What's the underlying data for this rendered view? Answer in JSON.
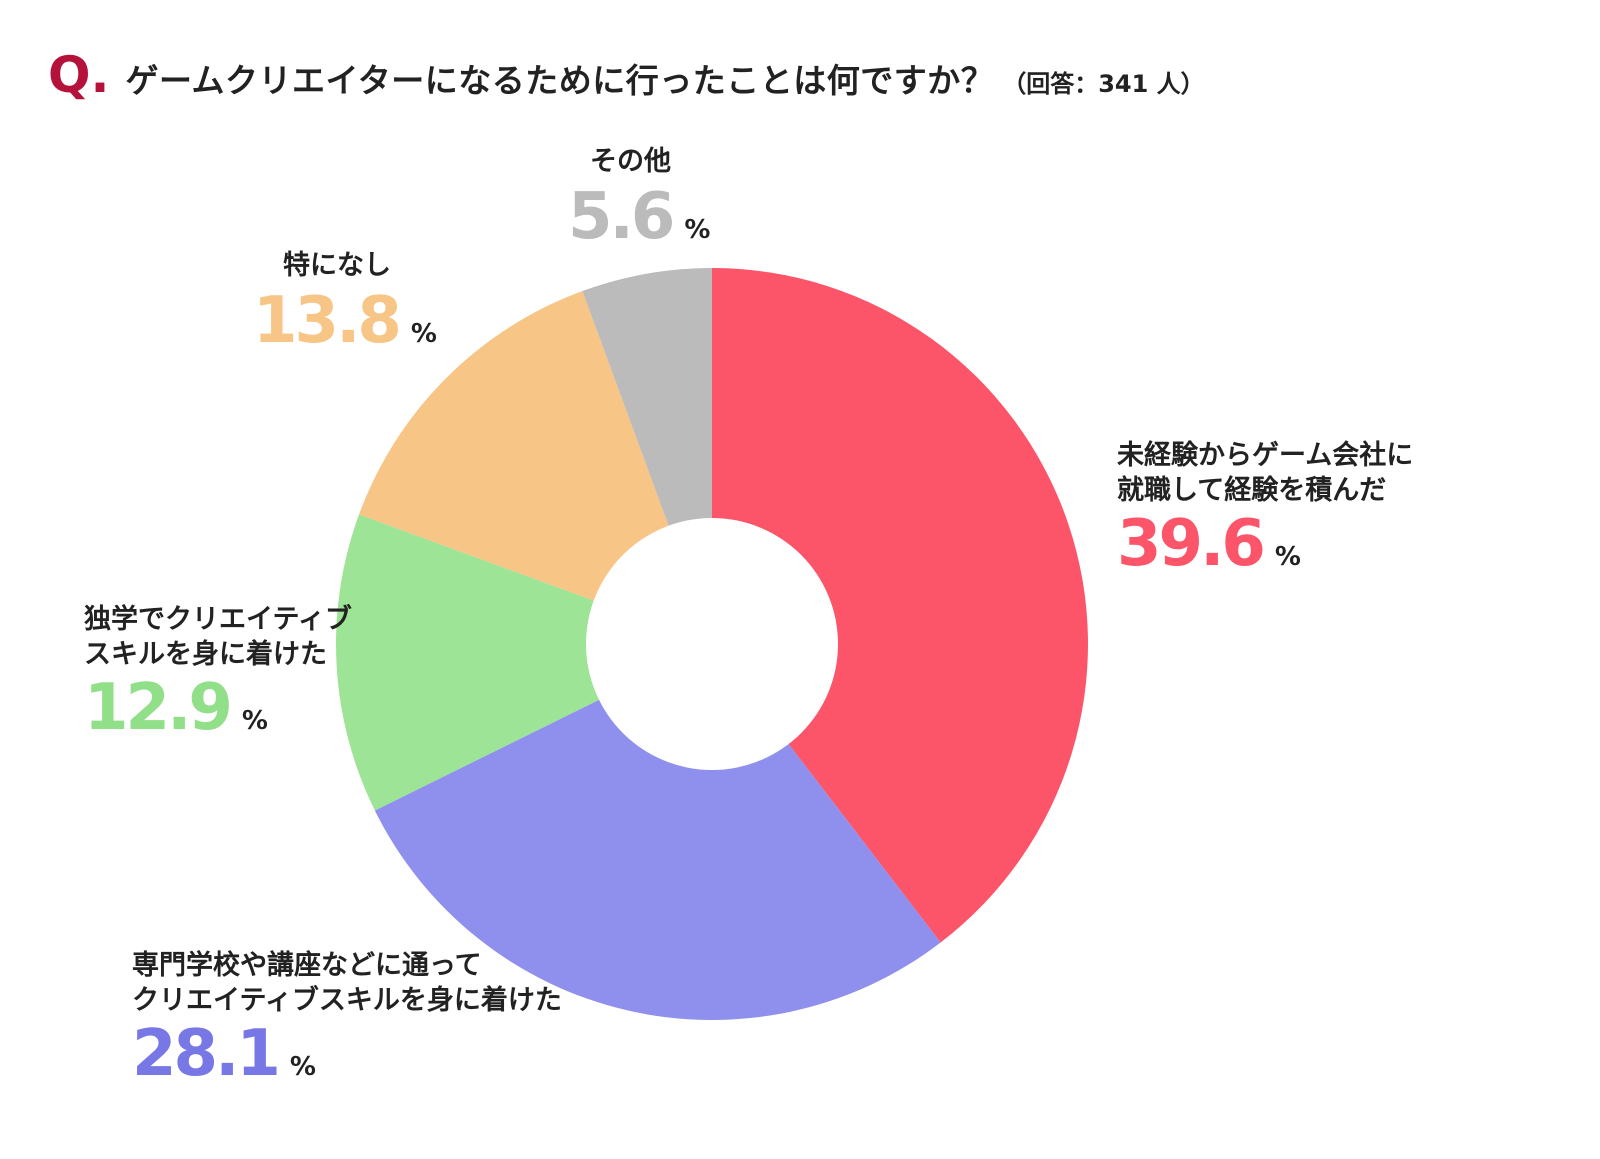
{
  "question": {
    "marker": "Q.",
    "text": "ゲームクリエイターになるために行ったことは何ですか？",
    "respondents": "（回答：341 人）",
    "marker_color": "#b5123b"
  },
  "chart_data": {
    "type": "pie",
    "donut": true,
    "unit": "%",
    "start": "top",
    "direction": "clockwise",
    "slices": [
      {
        "label": [
          "未経験からゲーム会社に",
          "就職して経験を積んだ"
        ],
        "value": 39.6,
        "color": "#fc5469",
        "value_color": "#fc5469"
      },
      {
        "label": [
          "専門学校や講座などに通って",
          "クリエイティブスキルを身に着けた"
        ],
        "value": 28.1,
        "color": "#8f8fee",
        "value_color": "#7777e6"
      },
      {
        "label": [
          "独学でクリエイティブ",
          "スキルを身に着けた"
        ],
        "value": 12.9,
        "color": "#9ee496",
        "value_color": "#92df8a"
      },
      {
        "label": [
          "特になし"
        ],
        "value": 13.8,
        "color": "#f7c585",
        "value_color": "#f7c585"
      },
      {
        "label": [
          "その他"
        ],
        "value": 5.6,
        "color": "#bbbbbb",
        "value_color": "#bbbbbb"
      }
    ]
  }
}
